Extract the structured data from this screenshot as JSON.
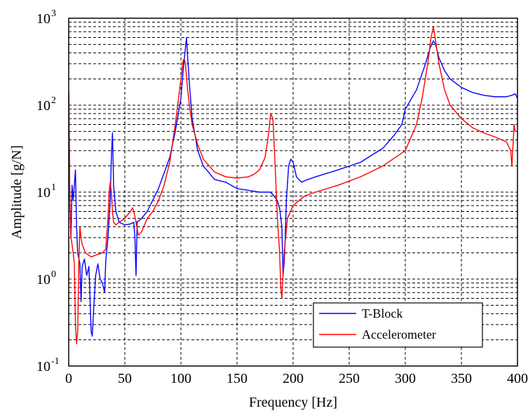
{
  "chart_data": {
    "type": "line",
    "xlabel": "Frequency [Hz]",
    "ylabel": "Amplitude [g/N]",
    "xlim": [
      0,
      400
    ],
    "ylim": [
      0.1,
      1000
    ],
    "y_scale": "log",
    "grid": true,
    "legend_position": "bottom-right",
    "x_ticks": [
      "0",
      "50",
      "100",
      "150",
      "200",
      "250",
      "300",
      "350",
      "400"
    ],
    "y_ticks": [
      {
        "base": "10",
        "exp": "-1",
        "value": 0.1
      },
      {
        "base": "10",
        "exp": "0",
        "value": 1
      },
      {
        "base": "10",
        "exp": "1",
        "value": 10
      },
      {
        "base": "10",
        "exp": "2",
        "value": 100
      },
      {
        "base": "10",
        "exp": "3",
        "value": 1000
      }
    ],
    "series": [
      {
        "name": "T-Block",
        "color": "#0000ff",
        "x": [
          0.5,
          1,
          2,
          3,
          4,
          5,
          6,
          7,
          8,
          10,
          11,
          12,
          14,
          16,
          18,
          20,
          21,
          22,
          24,
          26,
          28,
          30,
          32,
          33,
          35,
          37,
          38,
          39,
          40,
          42,
          45,
          50,
          55,
          58,
          59,
          60,
          61,
          62,
          65,
          70,
          80,
          90,
          95,
          100,
          102,
          104,
          105,
          106,
          108,
          110,
          115,
          120,
          130,
          140,
          150,
          160,
          170,
          175,
          180,
          183,
          186,
          188,
          190,
          191,
          192,
          193,
          194,
          196,
          198,
          200,
          203,
          205,
          208,
          210,
          220,
          240,
          260,
          280,
          290,
          297,
          300,
          310,
          318,
          322,
          325,
          327,
          330,
          335,
          340,
          350,
          360,
          370,
          380,
          390,
          395,
          398,
          400
        ],
        "y": [
          50,
          8,
          3,
          12,
          8,
          12,
          18,
          4,
          2,
          1.5,
          0.55,
          1.4,
          1.7,
          1.1,
          1.4,
          0.25,
          0.22,
          0.4,
          1.1,
          1.5,
          1.0,
          0.9,
          0.7,
          1.6,
          3.0,
          8,
          25,
          48,
          12,
          6,
          4.5,
          4.2,
          4.3,
          4.5,
          3.0,
          1.1,
          4.6,
          4.6,
          5.0,
          6.0,
          11,
          25,
          50,
          120,
          250,
          450,
          600,
          350,
          150,
          70,
          30,
          20,
          14,
          13,
          11,
          10.5,
          10,
          10,
          10,
          9,
          8,
          6.5,
          4,
          1.1,
          1.5,
          3,
          8,
          20,
          24,
          22,
          15,
          14,
          13,
          13.5,
          15,
          18,
          22,
          32,
          45,
          60,
          90,
          150,
          300,
          450,
          550,
          500,
          350,
          250,
          200,
          160,
          140,
          130,
          125,
          125,
          130,
          135,
          120
        ]
      },
      {
        "name": "Accelerometer",
        "color": "#ff0000",
        "x": [
          0.2,
          0.5,
          1,
          2,
          3,
          4,
          5,
          6,
          7,
          8,
          9,
          10,
          11,
          12,
          15,
          20,
          25,
          30,
          33,
          35,
          36,
          37,
          38,
          39,
          40,
          42,
          45,
          50,
          55,
          57,
          58,
          60,
          62,
          65,
          70,
          75,
          80,
          85,
          90,
          95,
          100,
          102,
          103,
          104,
          106,
          108,
          110,
          115,
          120,
          130,
          140,
          150,
          160,
          165,
          170,
          175,
          178,
          180,
          182,
          184,
          186,
          188,
          189,
          190,
          192,
          195,
          200,
          210,
          220,
          240,
          260,
          280,
          300,
          310,
          315,
          320,
          323,
          325,
          327,
          330,
          335,
          340,
          350,
          360,
          370,
          380,
          390,
          394,
          395,
          397,
          398,
          400
        ],
        "y": [
          140,
          30,
          8,
          3,
          2.5,
          2.0,
          1.5,
          0.3,
          0.18,
          0.25,
          1.5,
          4.0,
          3.0,
          2.5,
          2.0,
          1.8,
          1.9,
          2.0,
          2.2,
          5,
          10,
          13,
          10,
          6,
          4.5,
          4.2,
          4.5,
          5.0,
          6.0,
          6.6,
          6.0,
          4.5,
          3.2,
          3.5,
          5,
          6,
          8,
          12,
          22,
          60,
          200,
          330,
          340,
          300,
          150,
          90,
          60,
          35,
          24,
          17,
          15,
          14.5,
          15,
          16,
          18,
          25,
          45,
          80,
          70,
          20,
          5,
          2,
          0.8,
          0.6,
          2,
          5,
          7,
          9,
          10,
          12,
          15,
          20,
          30,
          60,
          120,
          300,
          600,
          800,
          550,
          300,
          150,
          100,
          70,
          55,
          48,
          43,
          38,
          30,
          20,
          60,
          50,
          50
        ]
      }
    ]
  }
}
